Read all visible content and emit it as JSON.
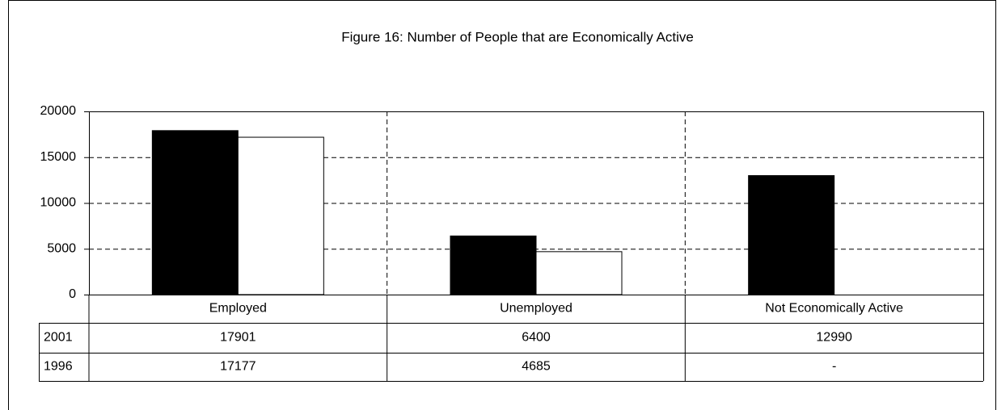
{
  "chart_data": {
    "type": "bar",
    "title": "Figure 16: Number of People that are Economically Active",
    "categories": [
      "Employed",
      "Unemployed",
      "Not Economically Active"
    ],
    "series": [
      {
        "name": "2001",
        "color": "#000000",
        "values": [
          17901,
          6400,
          12990
        ]
      },
      {
        "name": "1996",
        "color": "#ffffff",
        "values": [
          17177,
          4685,
          null
        ],
        "value_labels": [
          "17177",
          "4685",
          "-"
        ]
      }
    ],
    "ylim": [
      0,
      20000
    ],
    "yticks": [
      0,
      5000,
      10000,
      15000,
      20000
    ],
    "grid": true
  }
}
